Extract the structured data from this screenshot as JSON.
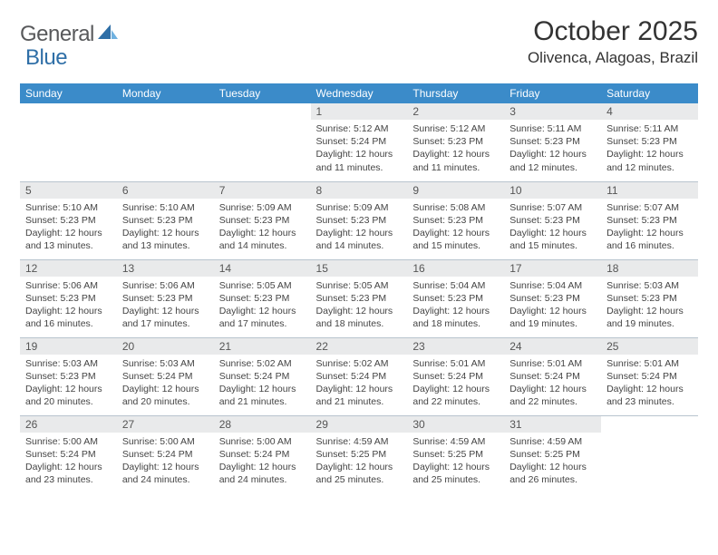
{
  "logo": {
    "word1": "General",
    "word2": "Blue"
  },
  "title": "October 2025",
  "location": "Olivenca, Alagoas, Brazil",
  "day_headers": [
    "Sunday",
    "Monday",
    "Tuesday",
    "Wednesday",
    "Thursday",
    "Friday",
    "Saturday"
  ],
  "header_bg": "#3b8bc9",
  "header_fg": "#ffffff",
  "daynum_bg": "#e9eaeb",
  "cell_border": "#b8c4ce",
  "weeks": [
    [
      {
        "n": "",
        "sr": "",
        "ss": "",
        "dl": ""
      },
      {
        "n": "",
        "sr": "",
        "ss": "",
        "dl": ""
      },
      {
        "n": "",
        "sr": "",
        "ss": "",
        "dl": ""
      },
      {
        "n": "1",
        "sr": "Sunrise: 5:12 AM",
        "ss": "Sunset: 5:24 PM",
        "dl": "Daylight: 12 hours and 11 minutes."
      },
      {
        "n": "2",
        "sr": "Sunrise: 5:12 AM",
        "ss": "Sunset: 5:23 PM",
        "dl": "Daylight: 12 hours and 11 minutes."
      },
      {
        "n": "3",
        "sr": "Sunrise: 5:11 AM",
        "ss": "Sunset: 5:23 PM",
        "dl": "Daylight: 12 hours and 12 minutes."
      },
      {
        "n": "4",
        "sr": "Sunrise: 5:11 AM",
        "ss": "Sunset: 5:23 PM",
        "dl": "Daylight: 12 hours and 12 minutes."
      }
    ],
    [
      {
        "n": "5",
        "sr": "Sunrise: 5:10 AM",
        "ss": "Sunset: 5:23 PM",
        "dl": "Daylight: 12 hours and 13 minutes."
      },
      {
        "n": "6",
        "sr": "Sunrise: 5:10 AM",
        "ss": "Sunset: 5:23 PM",
        "dl": "Daylight: 12 hours and 13 minutes."
      },
      {
        "n": "7",
        "sr": "Sunrise: 5:09 AM",
        "ss": "Sunset: 5:23 PM",
        "dl": "Daylight: 12 hours and 14 minutes."
      },
      {
        "n": "8",
        "sr": "Sunrise: 5:09 AM",
        "ss": "Sunset: 5:23 PM",
        "dl": "Daylight: 12 hours and 14 minutes."
      },
      {
        "n": "9",
        "sr": "Sunrise: 5:08 AM",
        "ss": "Sunset: 5:23 PM",
        "dl": "Daylight: 12 hours and 15 minutes."
      },
      {
        "n": "10",
        "sr": "Sunrise: 5:07 AM",
        "ss": "Sunset: 5:23 PM",
        "dl": "Daylight: 12 hours and 15 minutes."
      },
      {
        "n": "11",
        "sr": "Sunrise: 5:07 AM",
        "ss": "Sunset: 5:23 PM",
        "dl": "Daylight: 12 hours and 16 minutes."
      }
    ],
    [
      {
        "n": "12",
        "sr": "Sunrise: 5:06 AM",
        "ss": "Sunset: 5:23 PM",
        "dl": "Daylight: 12 hours and 16 minutes."
      },
      {
        "n": "13",
        "sr": "Sunrise: 5:06 AM",
        "ss": "Sunset: 5:23 PM",
        "dl": "Daylight: 12 hours and 17 minutes."
      },
      {
        "n": "14",
        "sr": "Sunrise: 5:05 AM",
        "ss": "Sunset: 5:23 PM",
        "dl": "Daylight: 12 hours and 17 minutes."
      },
      {
        "n": "15",
        "sr": "Sunrise: 5:05 AM",
        "ss": "Sunset: 5:23 PM",
        "dl": "Daylight: 12 hours and 18 minutes."
      },
      {
        "n": "16",
        "sr": "Sunrise: 5:04 AM",
        "ss": "Sunset: 5:23 PM",
        "dl": "Daylight: 12 hours and 18 minutes."
      },
      {
        "n": "17",
        "sr": "Sunrise: 5:04 AM",
        "ss": "Sunset: 5:23 PM",
        "dl": "Daylight: 12 hours and 19 minutes."
      },
      {
        "n": "18",
        "sr": "Sunrise: 5:03 AM",
        "ss": "Sunset: 5:23 PM",
        "dl": "Daylight: 12 hours and 19 minutes."
      }
    ],
    [
      {
        "n": "19",
        "sr": "Sunrise: 5:03 AM",
        "ss": "Sunset: 5:23 PM",
        "dl": "Daylight: 12 hours and 20 minutes."
      },
      {
        "n": "20",
        "sr": "Sunrise: 5:03 AM",
        "ss": "Sunset: 5:24 PM",
        "dl": "Daylight: 12 hours and 20 minutes."
      },
      {
        "n": "21",
        "sr": "Sunrise: 5:02 AM",
        "ss": "Sunset: 5:24 PM",
        "dl": "Daylight: 12 hours and 21 minutes."
      },
      {
        "n": "22",
        "sr": "Sunrise: 5:02 AM",
        "ss": "Sunset: 5:24 PM",
        "dl": "Daylight: 12 hours and 21 minutes."
      },
      {
        "n": "23",
        "sr": "Sunrise: 5:01 AM",
        "ss": "Sunset: 5:24 PM",
        "dl": "Daylight: 12 hours and 22 minutes."
      },
      {
        "n": "24",
        "sr": "Sunrise: 5:01 AM",
        "ss": "Sunset: 5:24 PM",
        "dl": "Daylight: 12 hours and 22 minutes."
      },
      {
        "n": "25",
        "sr": "Sunrise: 5:01 AM",
        "ss": "Sunset: 5:24 PM",
        "dl": "Daylight: 12 hours and 23 minutes."
      }
    ],
    [
      {
        "n": "26",
        "sr": "Sunrise: 5:00 AM",
        "ss": "Sunset: 5:24 PM",
        "dl": "Daylight: 12 hours and 23 minutes."
      },
      {
        "n": "27",
        "sr": "Sunrise: 5:00 AM",
        "ss": "Sunset: 5:24 PM",
        "dl": "Daylight: 12 hours and 24 minutes."
      },
      {
        "n": "28",
        "sr": "Sunrise: 5:00 AM",
        "ss": "Sunset: 5:24 PM",
        "dl": "Daylight: 12 hours and 24 minutes."
      },
      {
        "n": "29",
        "sr": "Sunrise: 4:59 AM",
        "ss": "Sunset: 5:25 PM",
        "dl": "Daylight: 12 hours and 25 minutes."
      },
      {
        "n": "30",
        "sr": "Sunrise: 4:59 AM",
        "ss": "Sunset: 5:25 PM",
        "dl": "Daylight: 12 hours and 25 minutes."
      },
      {
        "n": "31",
        "sr": "Sunrise: 4:59 AM",
        "ss": "Sunset: 5:25 PM",
        "dl": "Daylight: 12 hours and 26 minutes."
      },
      {
        "n": "",
        "sr": "",
        "ss": "",
        "dl": ""
      }
    ]
  ]
}
